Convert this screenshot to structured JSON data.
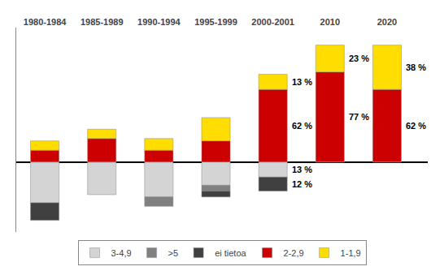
{
  "chart_data": {
    "type": "bar",
    "stacked": true,
    "categories": [
      "1980-1984",
      "1985-1989",
      "1990-1994",
      "1995-1999",
      "2000-2001",
      "2010",
      "2020"
    ],
    "series": [
      {
        "name": "3-4,9",
        "color": "#d4d4d4",
        "values": [
          -35,
          -28,
          -30,
          -20,
          -13,
          0,
          0
        ]
      },
      {
        "name": ">5",
        "color": "#808080",
        "values": [
          0,
          0,
          -8,
          -5,
          0,
          0,
          0
        ]
      },
      {
        "name": "ei tietoa",
        "color": "#404040",
        "values": [
          -15,
          0,
          0,
          -5,
          -12,
          0,
          0
        ]
      },
      {
        "name": "2-2,9",
        "color": "#cc0000",
        "values": [
          10,
          20,
          10,
          18,
          62,
          77,
          62
        ]
      },
      {
        "name": "1-1,9",
        "color": "#ffdd00",
        "values": [
          8,
          8,
          10,
          20,
          13,
          23,
          38
        ]
      }
    ],
    "annotations": [
      {
        "text": "62 %",
        "x": "2000-2001",
        "series": "2-2,9"
      },
      {
        "text": "13 %",
        "x": "2000-2001",
        "series": "1-1,9"
      },
      {
        "text": "77 %",
        "x": "2010",
        "series": "2-2,9"
      },
      {
        "text": "23 %",
        "x": "2010",
        "series": "1-1,9"
      },
      {
        "text": "62 %",
        "x": "2020",
        "series": "2-2,9"
      },
      {
        "text": "38 %",
        "x": "2020",
        "series": "1-1,9"
      },
      {
        "text": "13 %",
        "x": "2000-2001",
        "series": "3-4,9"
      },
      {
        "text": "12 %",
        "x": "2000-2001",
        "series": "ei tietoa"
      }
    ],
    "ylim": [
      -60,
      115
    ],
    "grid": false,
    "legend": "bottom",
    "tick_labels": "x"
  }
}
